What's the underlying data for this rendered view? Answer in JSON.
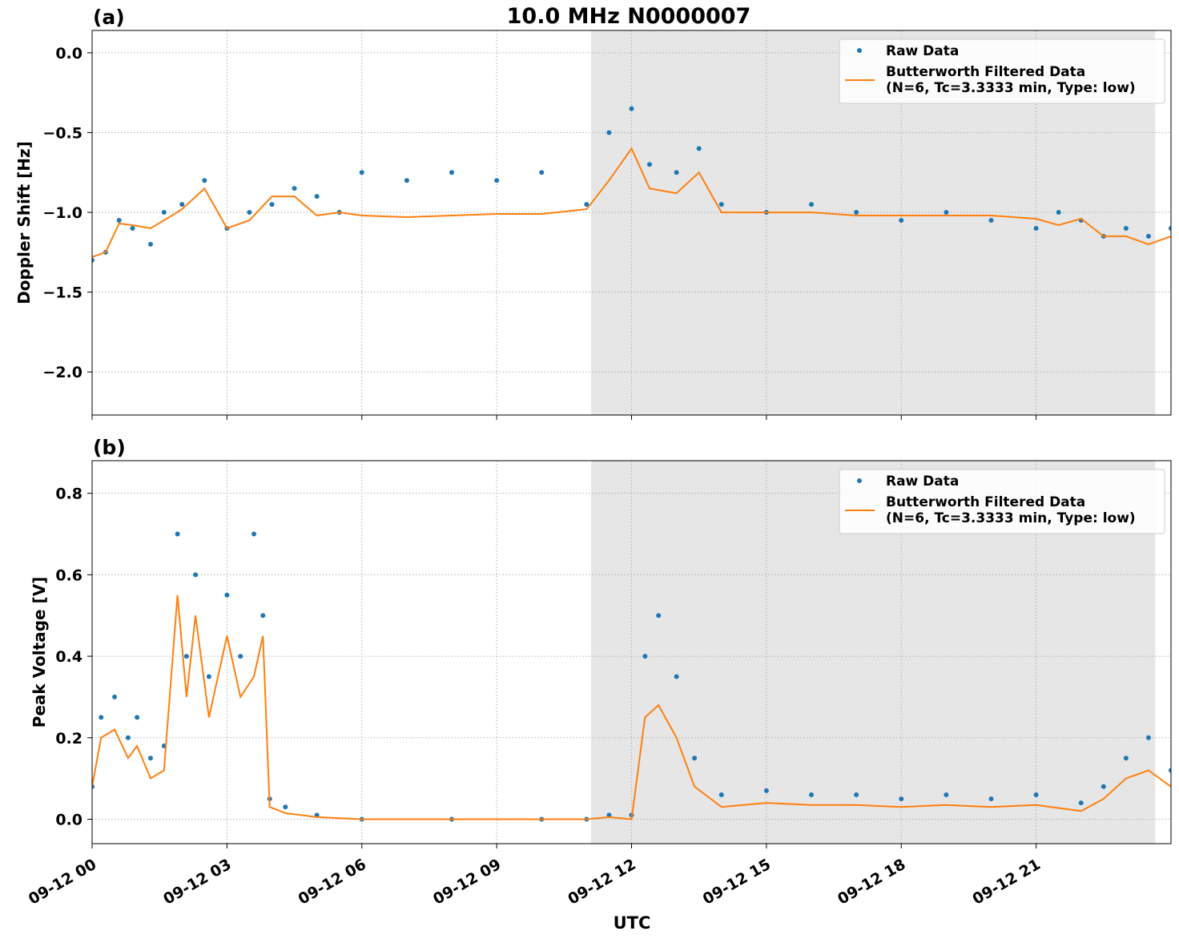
{
  "figure": {
    "title": "10.0 MHz N0000007",
    "xlabel": "UTC",
    "colors": {
      "raw": "#1f77b4",
      "filtered": "#ff7f0e",
      "shade": "#e6e6e6"
    }
  },
  "chart_data": [
    {
      "type": "line",
      "panel_label": "(a)",
      "ylabel": "Doppler Shift [Hz]",
      "x_unit": "UTC hours on 2024-09-12",
      "xlim": [
        0,
        24
      ],
      "ylim": [
        -2.27,
        0.14
      ],
      "yticks": [
        0.0,
        -0.5,
        -1.0,
        -1.5,
        -2.0
      ],
      "ytick_labels": [
        "0.0",
        "−0.5",
        "−1.0",
        "−1.5",
        "−2.0"
      ],
      "grid": true,
      "legend_position": "top-right",
      "shaded_region": [
        11.1,
        23.65
      ],
      "series": [
        {
          "name": "Raw Data",
          "style": "points",
          "x": [
            0.0,
            0.3,
            0.6,
            0.9,
            1.3,
            1.6,
            2.0,
            2.5,
            3.0,
            3.5,
            4.0,
            4.5,
            5.0,
            5.5,
            6.0,
            7.0,
            8.0,
            9.0,
            10.0,
            11.0,
            11.5,
            12.0,
            12.4,
            13.0,
            13.5,
            14.0,
            15.0,
            16.0,
            17.0,
            18.0,
            19.0,
            20.0,
            21.0,
            21.5,
            22.0,
            22.5,
            23.0,
            23.5,
            24.0
          ],
          "y": [
            -1.3,
            -1.25,
            -1.05,
            -1.1,
            -1.2,
            -1.0,
            -0.95,
            -0.8,
            -1.1,
            -1.0,
            -0.95,
            -0.85,
            -0.9,
            -1.0,
            -0.75,
            -0.8,
            -0.75,
            -0.8,
            -0.75,
            -0.95,
            -0.5,
            -0.35,
            -0.7,
            -0.75,
            -0.6,
            -0.95,
            -1.0,
            -0.95,
            -1.0,
            -1.05,
            -1.0,
            -1.05,
            -1.1,
            -1.0,
            -1.05,
            -1.15,
            -1.1,
            -1.15,
            -1.1
          ]
        },
        {
          "name": "Butterworth Filtered Data\n(N=6, Tc=3.3333 min, Type: low)",
          "style": "line",
          "x": [
            0.0,
            0.3,
            0.6,
            0.9,
            1.3,
            1.6,
            2.0,
            2.5,
            3.0,
            3.5,
            4.0,
            4.5,
            5.0,
            5.5,
            6.0,
            7.0,
            8.0,
            9.0,
            10.0,
            11.0,
            11.5,
            12.0,
            12.4,
            13.0,
            13.5,
            14.0,
            15.0,
            16.0,
            17.0,
            18.0,
            19.0,
            20.0,
            21.0,
            21.5,
            22.0,
            22.5,
            23.0,
            23.5,
            24.0
          ],
          "y": [
            -1.28,
            -1.25,
            -1.07,
            -1.08,
            -1.1,
            -1.05,
            -0.98,
            -0.85,
            -1.1,
            -1.05,
            -0.9,
            -0.9,
            -1.02,
            -1.0,
            -1.02,
            -1.03,
            -1.02,
            -1.01,
            -1.01,
            -0.98,
            -0.8,
            -0.6,
            -0.85,
            -0.88,
            -0.75,
            -1.0,
            -1.0,
            -1.0,
            -1.02,
            -1.02,
            -1.02,
            -1.02,
            -1.04,
            -1.08,
            -1.04,
            -1.15,
            -1.15,
            -1.2,
            -1.15
          ]
        }
      ]
    },
    {
      "type": "line",
      "panel_label": "(b)",
      "ylabel": "Peak Voltage [V]",
      "x_unit": "UTC hours on 2024-09-12",
      "xlim": [
        0,
        24
      ],
      "ylim": [
        -0.06,
        0.88
      ],
      "yticks": [
        0.0,
        0.2,
        0.4,
        0.6,
        0.8
      ],
      "ytick_labels": [
        "0.0",
        "0.2",
        "0.4",
        "0.6",
        "0.8"
      ],
      "xticks": [
        0,
        3,
        6,
        9,
        12,
        15,
        18,
        21
      ],
      "xtick_labels": [
        "09-12 00",
        "09-12 03",
        "09-12 06",
        "09-12 09",
        "09-12 12",
        "09-12 15",
        "09-12 18",
        "09-12 21"
      ],
      "grid": true,
      "legend_position": "top-right",
      "shaded_region": [
        11.1,
        23.65
      ],
      "series": [
        {
          "name": "Raw Data",
          "style": "points",
          "x": [
            0.0,
            0.2,
            0.5,
            0.8,
            1.0,
            1.3,
            1.6,
            1.9,
            2.1,
            2.3,
            2.6,
            3.0,
            3.3,
            3.6,
            3.8,
            3.95,
            4.3,
            5.0,
            6.0,
            8.0,
            10.0,
            11.0,
            11.5,
            12.0,
            12.3,
            12.6,
            13.0,
            13.4,
            14.0,
            15.0,
            16.0,
            17.0,
            18.0,
            19.0,
            20.0,
            21.0,
            22.0,
            22.5,
            23.0,
            23.5,
            24.0
          ],
          "y": [
            0.08,
            0.25,
            0.3,
            0.2,
            0.25,
            0.15,
            0.18,
            0.7,
            0.4,
            0.6,
            0.35,
            0.55,
            0.4,
            0.7,
            0.5,
            0.05,
            0.03,
            0.01,
            0.0,
            0.0,
            0.0,
            0.0,
            0.01,
            0.01,
            0.4,
            0.5,
            0.35,
            0.15,
            0.06,
            0.07,
            0.06,
            0.06,
            0.05,
            0.06,
            0.05,
            0.06,
            0.04,
            0.08,
            0.15,
            0.2,
            0.12
          ]
        },
        {
          "name": "Butterworth Filtered Data\n(N=6, Tc=3.3333 min, Type: low)",
          "style": "line",
          "x": [
            0.0,
            0.2,
            0.5,
            0.8,
            1.0,
            1.3,
            1.6,
            1.9,
            2.1,
            2.3,
            2.6,
            3.0,
            3.3,
            3.6,
            3.8,
            3.95,
            4.3,
            5.0,
            6.0,
            8.0,
            10.0,
            11.0,
            11.5,
            12.0,
            12.3,
            12.6,
            13.0,
            13.4,
            14.0,
            15.0,
            16.0,
            17.0,
            18.0,
            19.0,
            20.0,
            21.0,
            22.0,
            22.5,
            23.0,
            23.5,
            24.0
          ],
          "y": [
            0.08,
            0.2,
            0.22,
            0.15,
            0.18,
            0.1,
            0.12,
            0.55,
            0.3,
            0.5,
            0.25,
            0.45,
            0.3,
            0.35,
            0.45,
            0.03,
            0.015,
            0.005,
            0.0,
            0.0,
            0.0,
            0.0,
            0.005,
            0.0,
            0.25,
            0.28,
            0.2,
            0.08,
            0.03,
            0.04,
            0.035,
            0.035,
            0.03,
            0.035,
            0.03,
            0.035,
            0.02,
            0.05,
            0.1,
            0.12,
            0.08
          ]
        }
      ]
    }
  ]
}
